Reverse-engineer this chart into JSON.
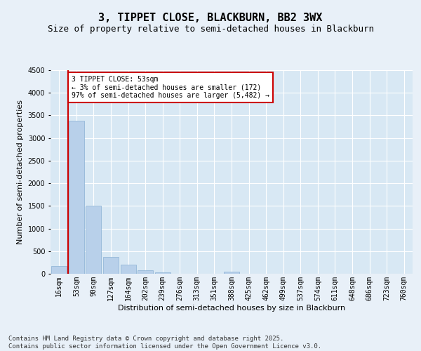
{
  "title": "3, TIPPET CLOSE, BLACKBURN, BB2 3WX",
  "subtitle": "Size of property relative to semi-detached houses in Blackburn",
  "xlabel": "Distribution of semi-detached houses by size in Blackburn",
  "ylabel": "Number of semi-detached properties",
  "categories": [
    "16sqm",
    "53sqm",
    "90sqm",
    "127sqm",
    "164sqm",
    "202sqm",
    "239sqm",
    "276sqm",
    "313sqm",
    "351sqm",
    "388sqm",
    "425sqm",
    "462sqm",
    "499sqm",
    "537sqm",
    "574sqm",
    "611sqm",
    "648sqm",
    "686sqm",
    "723sqm",
    "760sqm"
  ],
  "values": [
    172,
    3380,
    1500,
    380,
    195,
    75,
    30,
    5,
    0,
    0,
    50,
    0,
    0,
    0,
    0,
    0,
    0,
    0,
    0,
    0,
    0
  ],
  "bar_color": "#b8d0ea",
  "bar_edge_color": "#8ab0d4",
  "highlight_line_color": "#cc0000",
  "annotation_text": "3 TIPPET CLOSE: 53sqm\n← 3% of semi-detached houses are smaller (172)\n97% of semi-detached houses are larger (5,482) →",
  "annotation_box_facecolor": "#ffffff",
  "annotation_box_edgecolor": "#cc0000",
  "ylim": [
    0,
    4500
  ],
  "yticks": [
    0,
    500,
    1000,
    1500,
    2000,
    2500,
    3000,
    3500,
    4000,
    4500
  ],
  "footer": "Contains HM Land Registry data © Crown copyright and database right 2025.\nContains public sector information licensed under the Open Government Licence v3.0.",
  "bg_color": "#e8f0f8",
  "plot_bg_color": "#d8e8f4",
  "grid_color": "#ffffff",
  "title_fontsize": 11,
  "subtitle_fontsize": 9,
  "tick_fontsize": 7,
  "label_fontsize": 8,
  "annotation_fontsize": 7,
  "footer_fontsize": 6.5
}
